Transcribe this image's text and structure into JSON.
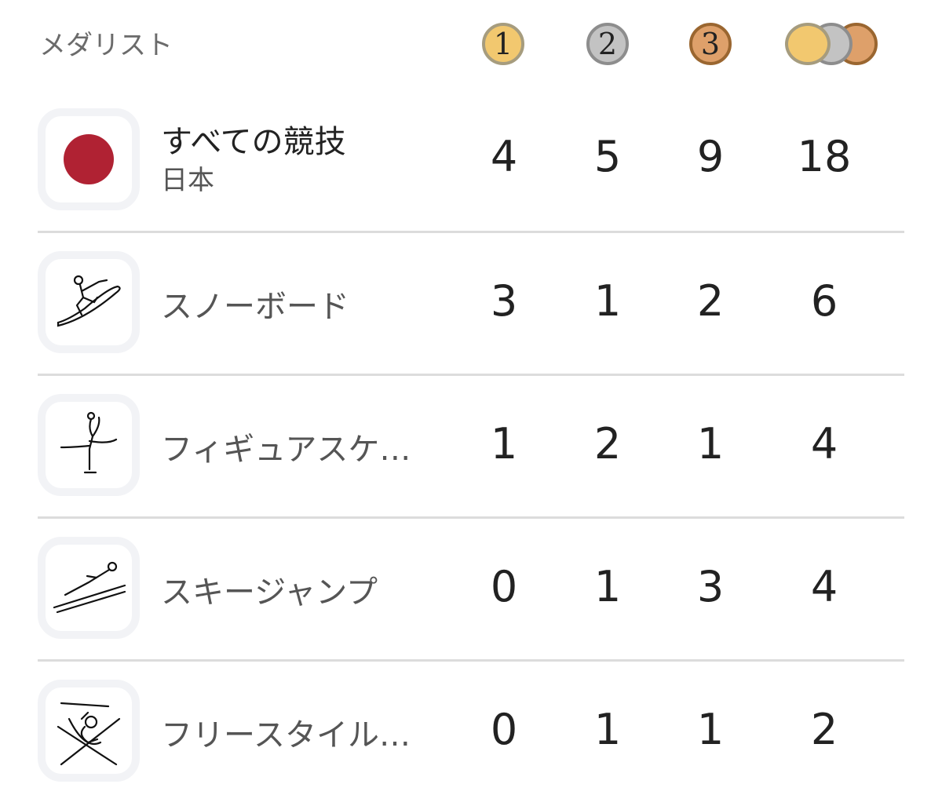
{
  "header": {
    "title": "メダリスト",
    "medals": [
      {
        "name": "gold",
        "label": "1",
        "color": "#f2c86f"
      },
      {
        "name": "silver",
        "label": "2",
        "color": "#c3c3c3"
      },
      {
        "name": "bronze",
        "label": "3",
        "color": "#dea06a"
      }
    ]
  },
  "total": {
    "title": "すべての競技",
    "country": "日本",
    "flag_color": "#b02233",
    "gold": "4",
    "silver": "5",
    "bronze": "9",
    "total": "18"
  },
  "sports": [
    {
      "name": "スノーボード",
      "icon": "snowboard-icon",
      "gold": "3",
      "silver": "1",
      "bronze": "2",
      "total": "6"
    },
    {
      "name": "フィギュアスケ…",
      "icon": "figure-skating-icon",
      "gold": "1",
      "silver": "2",
      "bronze": "1",
      "total": "4"
    },
    {
      "name": "スキージャンプ",
      "icon": "ski-jumping-icon",
      "gold": "0",
      "silver": "1",
      "bronze": "3",
      "total": "4"
    },
    {
      "name": "フリースタイル…",
      "icon": "freestyle-skiing-icon",
      "gold": "0",
      "silver": "1",
      "bronze": "1",
      "total": "2"
    }
  ]
}
